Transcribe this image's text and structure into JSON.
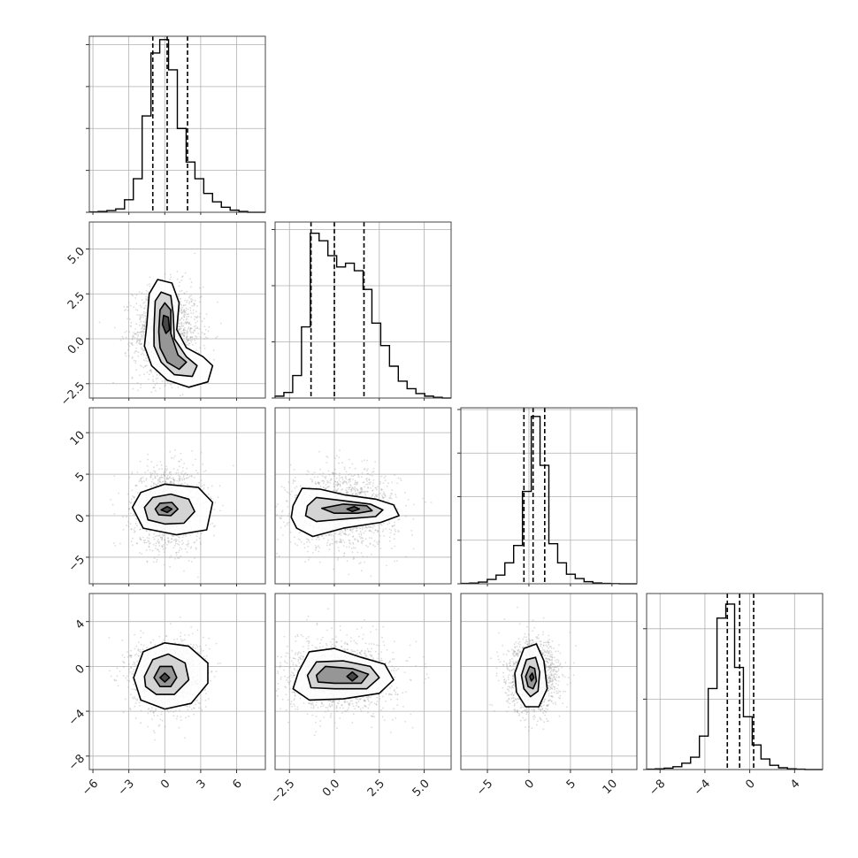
{
  "chart_data": {
    "type": "corner",
    "grid": true,
    "dimensions": [
      {
        "ticks": [
          -6,
          -3,
          0,
          3,
          6
        ],
        "tick_labels": [
          "−6",
          "−3",
          "0",
          "3",
          "6"
        ],
        "range": [
          -6.3,
          8.4
        ],
        "quantiles": [
          -1.0,
          0.2,
          1.9
        ],
        "hist_bins": [
          -6.3,
          8.4
        ],
        "hist_counts": [
          1,
          2,
          4,
          8,
          30,
          80,
          230,
          380,
          412,
          340,
          200,
          120,
          80,
          45,
          25,
          12,
          5,
          2,
          0,
          0
        ],
        "hist_max": 420,
        "hist_yticks": [
          0,
          100,
          200,
          300,
          400
        ]
      },
      {
        "ticks": [
          -2.5,
          0,
          2.5,
          5
        ],
        "tick_labels": [
          "−2.5",
          "0.0",
          "2.5",
          "5.0"
        ],
        "range": [
          -3.3,
          6.5
        ],
        "quantiles": [
          -1.3,
          0.0,
          1.65
        ],
        "hist_counts": [
          5,
          15,
          60,
          190,
          440,
          420,
          380,
          350,
          360,
          340,
          290,
          200,
          140,
          85,
          45,
          25,
          12,
          5,
          2,
          0
        ],
        "hist_max": 470,
        "hist_yticks": [
          0,
          150,
          300,
          450
        ]
      },
      {
        "ticks": [
          -5,
          0,
          5,
          10
        ],
        "tick_labels": [
          "−5",
          "0",
          "5",
          "10"
        ],
        "range": [
          -8.2,
          13.0
        ],
        "quantiles": [
          -0.6,
          0.5,
          1.9
        ],
        "hist_counts": [
          2,
          4,
          10,
          25,
          50,
          120,
          220,
          530,
          960,
          680,
          230,
          120,
          55,
          30,
          12,
          5,
          2,
          1,
          0,
          0
        ],
        "hist_max": 1010,
        "hist_yticks": [
          0,
          250,
          500,
          750,
          1000
        ]
      },
      {
        "ticks": [
          -8,
          -4,
          0,
          4
        ],
        "tick_labels": [
          "−8",
          "−4",
          "0",
          "4"
        ],
        "range": [
          -9.2,
          6.5
        ],
        "quantiles": [
          -2.0,
          -0.9,
          0.35
        ],
        "hist_counts": [
          1,
          2,
          4,
          8,
          18,
          35,
          95,
          230,
          430,
          470,
          290,
          150,
          70,
          30,
          12,
          5,
          2,
          1,
          0,
          0
        ],
        "hist_max": 500,
        "hist_yticks": [
          0,
          200,
          400
        ]
      }
    ],
    "pairs": [
      {
        "row": 1,
        "col": 0,
        "mean": [
          0.2,
          0.3
        ],
        "std": [
          1.4,
          1.3
        ],
        "contours": [
          [
            [
              -1.5,
              0.8
            ],
            [
              -1.3,
              2.5
            ],
            [
              -0.6,
              3.3
            ],
            [
              0.6,
              3.1
            ],
            [
              1.2,
              2.0
            ],
            [
              1.0,
              0.5
            ],
            [
              1.8,
              -0.5
            ],
            [
              3.2,
              -1.0
            ],
            [
              4.0,
              -1.5
            ],
            [
              3.6,
              -2.4
            ],
            [
              2.0,
              -2.7
            ],
            [
              0.2,
              -2.3
            ],
            [
              -1.1,
              -1.5
            ],
            [
              -1.7,
              -0.4
            ]
          ],
          [
            [
              -0.9,
              0.6
            ],
            [
              -0.8,
              2.1
            ],
            [
              -0.3,
              2.6
            ],
            [
              0.5,
              2.4
            ],
            [
              0.7,
              1.4
            ],
            [
              0.8,
              0.0
            ],
            [
              1.8,
              -1.0
            ],
            [
              2.7,
              -1.5
            ],
            [
              2.3,
              -2.1
            ],
            [
              0.8,
              -2.0
            ],
            [
              -0.3,
              -1.3
            ],
            [
              -0.9,
              -0.4
            ]
          ],
          [
            [
              -0.5,
              0.4
            ],
            [
              -0.4,
              1.6
            ],
            [
              0.0,
              2.0
            ],
            [
              0.5,
              1.6
            ],
            [
              0.5,
              0.3
            ],
            [
              1.1,
              -0.9
            ],
            [
              1.8,
              -1.3
            ],
            [
              1.2,
              -1.7
            ],
            [
              0.2,
              -1.3
            ],
            [
              -0.4,
              -0.5
            ]
          ],
          [
            [
              -0.2,
              0.8
            ],
            [
              -0.1,
              1.3
            ],
            [
              0.3,
              1.2
            ],
            [
              0.4,
              0.5
            ],
            [
              0.1,
              0.3
            ]
          ]
        ]
      },
      {
        "row": 2,
        "col": 0,
        "mean": [
          0.3,
          0.8
        ],
        "std": [
          1.5,
          2.4
        ],
        "contours": [
          [
            [
              -2.7,
              1.0
            ],
            [
              -2.0,
              2.8
            ],
            [
              0.0,
              3.8
            ],
            [
              2.8,
              3.4
            ],
            [
              4.0,
              1.6
            ],
            [
              3.5,
              -1.7
            ],
            [
              1.0,
              -2.3
            ],
            [
              -1.8,
              -1.5
            ]
          ],
          [
            [
              -1.7,
              1.0
            ],
            [
              -1.0,
              2.2
            ],
            [
              0.5,
              2.6
            ],
            [
              2.0,
              2.0
            ],
            [
              2.5,
              0.5
            ],
            [
              1.6,
              -0.9
            ],
            [
              0.0,
              -1.0
            ],
            [
              -1.4,
              -0.5
            ]
          ],
          [
            [
              -0.8,
              0.8
            ],
            [
              -0.4,
              1.5
            ],
            [
              0.6,
              1.6
            ],
            [
              1.1,
              0.8
            ],
            [
              0.5,
              0.0
            ],
            [
              -0.5,
              0.1
            ]
          ],
          [
            [
              -0.3,
              0.7
            ],
            [
              0.2,
              1.1
            ],
            [
              0.6,
              0.8
            ],
            [
              0.2,
              0.4
            ]
          ]
        ]
      },
      {
        "row": 2,
        "col": 1,
        "mean": [
          0.5,
          0.8
        ],
        "std": [
          1.5,
          2.3
        ],
        "contours": [
          [
            [
              -2.3,
              1.2
            ],
            [
              -1.8,
              3.3
            ],
            [
              -0.8,
              3.2
            ],
            [
              0.6,
              2.5
            ],
            [
              2.3,
              2.0
            ],
            [
              3.3,
              1.3
            ],
            [
              3.6,
              0.0
            ],
            [
              2.6,
              -0.8
            ],
            [
              0.5,
              -1.5
            ],
            [
              -1.2,
              -2.5
            ],
            [
              -2.1,
              -1.5
            ],
            [
              -2.4,
              -0.2
            ]
          ],
          [
            [
              -1.5,
              1.2
            ],
            [
              -1.0,
              2.2
            ],
            [
              0.5,
              1.8
            ],
            [
              2.0,
              1.4
            ],
            [
              2.7,
              0.7
            ],
            [
              2.3,
              -0.1
            ],
            [
              0.5,
              -0.4
            ],
            [
              -1.0,
              -0.7
            ],
            [
              -1.6,
              0.0
            ]
          ],
          [
            [
              -0.7,
              0.9
            ],
            [
              0.5,
              1.4
            ],
            [
              1.8,
              1.2
            ],
            [
              2.1,
              0.6
            ],
            [
              1.3,
              0.3
            ],
            [
              0.0,
              0.3
            ]
          ],
          [
            [
              0.7,
              0.8
            ],
            [
              1.1,
              1.1
            ],
            [
              1.4,
              0.8
            ],
            [
              1.0,
              0.5
            ]
          ]
        ]
      },
      {
        "row": 3,
        "col": 0,
        "mean": [
          0.2,
          -0.9
        ],
        "std": [
          1.5,
          1.6
        ],
        "contours": [
          [
            [
              -2.6,
              -1.0
            ],
            [
              -1.8,
              1.3
            ],
            [
              0.0,
              2.1
            ],
            [
              2.0,
              1.8
            ],
            [
              3.6,
              0.3
            ],
            [
              3.6,
              -1.5
            ],
            [
              2.2,
              -3.3
            ],
            [
              0.0,
              -3.8
            ],
            [
              -2.0,
              -3.0
            ]
          ],
          [
            [
              -1.7,
              -0.9
            ],
            [
              -1.0,
              0.6
            ],
            [
              0.3,
              1.1
            ],
            [
              1.7,
              0.3
            ],
            [
              2.0,
              -1.2
            ],
            [
              0.8,
              -2.5
            ],
            [
              -0.7,
              -2.5
            ],
            [
              -1.6,
              -1.8
            ]
          ],
          [
            [
              -0.9,
              -1.0
            ],
            [
              -0.4,
              0.0
            ],
            [
              0.6,
              0.0
            ],
            [
              1.0,
              -1.0
            ],
            [
              0.5,
              -1.8
            ],
            [
              -0.4,
              -1.8
            ]
          ],
          [
            [
              -0.4,
              -1.0
            ],
            [
              0.0,
              -0.6
            ],
            [
              0.4,
              -1.0
            ],
            [
              0.0,
              -1.4
            ]
          ]
        ]
      },
      {
        "row": 3,
        "col": 1,
        "mean": [
          0.3,
          -0.9
        ],
        "std": [
          1.5,
          1.6
        ],
        "contours": [
          [
            [
              -2.0,
              -0.5
            ],
            [
              -1.4,
              1.3
            ],
            [
              0.0,
              1.6
            ],
            [
              1.5,
              0.8
            ],
            [
              2.8,
              0.2
            ],
            [
              3.3,
              -1.2
            ],
            [
              2.5,
              -2.4
            ],
            [
              0.5,
              -2.9
            ],
            [
              -1.4,
              -3.0
            ],
            [
              -2.3,
              -2.0
            ]
          ],
          [
            [
              -1.5,
              -0.8
            ],
            [
              -1.0,
              0.4
            ],
            [
              0.5,
              0.5
            ],
            [
              2.0,
              0.0
            ],
            [
              2.5,
              -1.0
            ],
            [
              1.8,
              -2.0
            ],
            [
              0.0,
              -2.0
            ],
            [
              -1.3,
              -1.9
            ]
          ],
          [
            [
              -1.0,
              -0.8
            ],
            [
              -0.5,
              0.0
            ],
            [
              1.0,
              -0.2
            ],
            [
              1.9,
              -0.7
            ],
            [
              1.5,
              -1.5
            ],
            [
              0.0,
              -1.5
            ],
            [
              -0.9,
              -1.4
            ]
          ],
          [
            [
              0.7,
              -0.9
            ],
            [
              1.0,
              -0.5
            ],
            [
              1.3,
              -0.9
            ],
            [
              1.0,
              -1.3
            ]
          ]
        ]
      },
      {
        "row": 3,
        "col": 2,
        "mean": [
          0.5,
          -0.9
        ],
        "std": [
          1.6,
          1.6
        ],
        "contours": [
          [
            [
              -1.7,
              -0.6
            ],
            [
              -0.6,
              1.6
            ],
            [
              0.9,
              2.0
            ],
            [
              1.8,
              0.5
            ],
            [
              2.2,
              -2.0
            ],
            [
              1.2,
              -3.6
            ],
            [
              -0.4,
              -3.6
            ],
            [
              -1.5,
              -2.3
            ]
          ],
          [
            [
              -0.9,
              -0.8
            ],
            [
              -0.3,
              0.6
            ],
            [
              0.8,
              0.8
            ],
            [
              1.3,
              -0.5
            ],
            [
              1.1,
              -2.2
            ],
            [
              0.2,
              -2.7
            ],
            [
              -0.6,
              -2.0
            ]
          ],
          [
            [
              -0.4,
              -0.9
            ],
            [
              0.1,
              0.0
            ],
            [
              0.7,
              -0.2
            ],
            [
              0.9,
              -1.3
            ],
            [
              0.5,
              -2.0
            ],
            [
              -0.1,
              -1.8
            ]
          ],
          [
            [
              0.1,
              -0.9
            ],
            [
              0.4,
              -0.6
            ],
            [
              0.6,
              -1.0
            ],
            [
              0.3,
              -1.3
            ]
          ]
        ]
      }
    ]
  }
}
